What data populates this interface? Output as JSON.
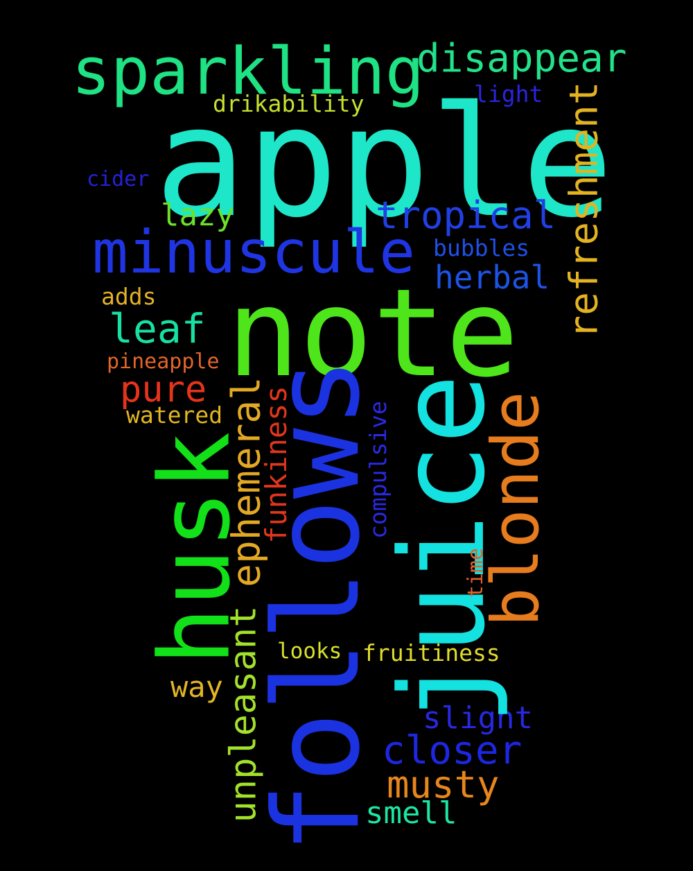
{
  "words": [
    {
      "text": "apple",
      "color": "#1ee6c8"
    },
    {
      "text": "note",
      "color": "#4ee51a"
    },
    {
      "text": "follows",
      "color": "#1b32e0"
    },
    {
      "text": "juice",
      "color": "#14e2e0"
    },
    {
      "text": "husk",
      "color": "#12e018"
    },
    {
      "text": "sparkling",
      "color": "#1ee283"
    },
    {
      "text": "minuscule",
      "color": "#1f35e4"
    },
    {
      "text": "blonde",
      "color": "#e67c1e"
    },
    {
      "text": "disappear",
      "color": "#22e28a"
    },
    {
      "text": "refreshment",
      "color": "#e3b321"
    },
    {
      "text": "ephemeral",
      "color": "#e3a925"
    },
    {
      "text": "unpleasant",
      "color": "#a3e22b"
    },
    {
      "text": "tropical",
      "color": "#2040e6"
    },
    {
      "text": "closer",
      "color": "#1d27e2"
    },
    {
      "text": "leaf",
      "color": "#18e0a3"
    },
    {
      "text": "musty",
      "color": "#e6861c"
    },
    {
      "text": "pure",
      "color": "#e6331c"
    },
    {
      "text": "herbal",
      "color": "#1d54e6"
    },
    {
      "text": "funkiness",
      "color": "#e0361c"
    },
    {
      "text": "slight",
      "color": "#2828e4"
    },
    {
      "text": "lazy",
      "color": "#6ce228"
    },
    {
      "text": "smell",
      "color": "#1de6a3"
    },
    {
      "text": "way",
      "color": "#e2b526"
    },
    {
      "text": "fruitiness",
      "color": "#e2dc2d"
    },
    {
      "text": "bubbles",
      "color": "#2050e6"
    },
    {
      "text": "compulsive",
      "color": "#2a2ae6"
    },
    {
      "text": "drikability",
      "color": "#c8e22d"
    },
    {
      "text": "light",
      "color": "#2a25e0"
    },
    {
      "text": "adds",
      "color": "#e3b228"
    },
    {
      "text": "pineapple",
      "color": "#e3652a"
    },
    {
      "text": "watered",
      "color": "#e3b623"
    },
    {
      "text": "looks",
      "color": "#d8e22d"
    },
    {
      "text": "cider",
      "color": "#2621d6"
    },
    {
      "text": "time",
      "color": "#e3612a"
    }
  ]
}
